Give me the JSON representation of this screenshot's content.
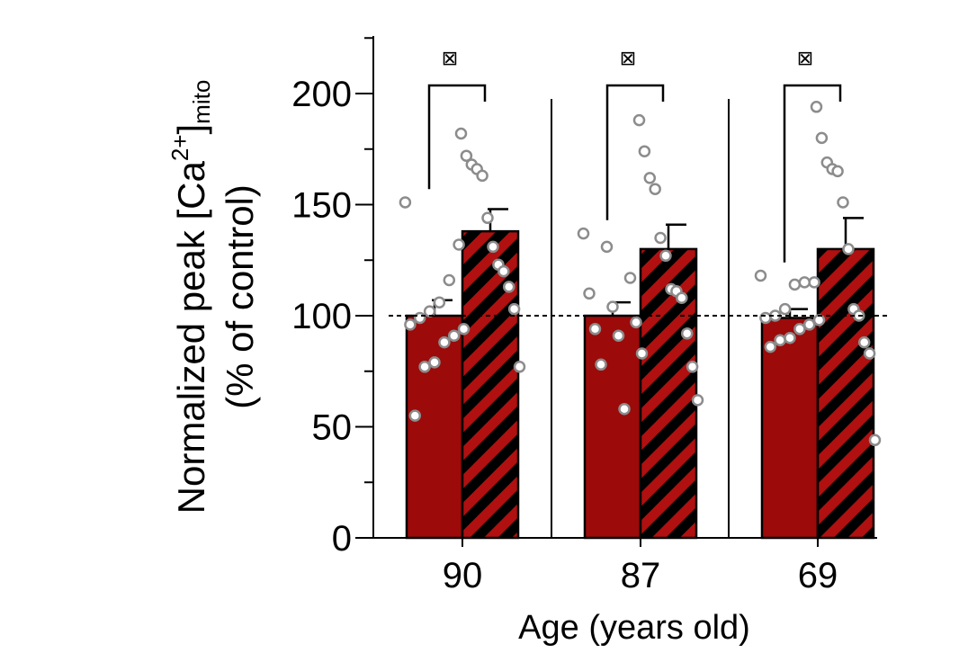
{
  "chart_data": {
    "type": "bar",
    "title": "",
    "xlabel": "Age (years old)",
    "ylabel": {
      "line1_prefix": "Normalized peak [Ca",
      "line1_sup": "2+",
      "line1_close": "]",
      "line1_sub": "mito",
      "line2": "(% of control)"
    },
    "ylim": [
      0,
      225
    ],
    "yticks": [
      0,
      50,
      100,
      150,
      200
    ],
    "reference_line": 100,
    "groups": [
      {
        "category": "90",
        "significance": "⊠",
        "bars": [
          {
            "style": "solid",
            "value": 100,
            "error": 7,
            "points": [
              151,
              132,
              116,
              106,
              102,
              99,
              96,
              94,
              91,
              88,
              79,
              77,
              55
            ]
          },
          {
            "style": "hatched",
            "value": 138,
            "error": 10,
            "points": [
              182,
              172,
              168,
              166,
              163,
              144,
              131,
              123,
              120,
              113,
              103,
              77
            ]
          }
        ]
      },
      {
        "category": "87",
        "significance": "⊠",
        "bars": [
          {
            "style": "solid",
            "value": 100,
            "error": 6,
            "points": [
              137,
              131,
              117,
              110,
              104,
              97,
              94,
              91,
              83,
              78,
              58
            ]
          },
          {
            "style": "hatched",
            "value": 130,
            "error": 11,
            "points": [
              188,
              174,
              162,
              157,
              135,
              127,
              112,
              111,
              108,
              92,
              77,
              62
            ]
          }
        ]
      },
      {
        "category": "69",
        "significance": "⊠",
        "bars": [
          {
            "style": "solid",
            "value": 99,
            "error": 4,
            "points": [
              118,
              115,
              115,
              114,
              103,
              100,
              99,
              98,
              96,
              94,
              90,
              89,
              86
            ]
          },
          {
            "style": "hatched",
            "value": 130,
            "error": 14,
            "points": [
              194,
              180,
              169,
              166,
              165,
              151,
              130,
              103,
              100,
              88,
              83,
              44
            ]
          }
        ]
      }
    ],
    "colors": {
      "solid_fill": "#9c0a0a",
      "hatch_fill": "#b01010",
      "hatch_stripe": "#000000",
      "point_stroke": "#8c8c8c",
      "point_fill": "#ffffff"
    }
  }
}
